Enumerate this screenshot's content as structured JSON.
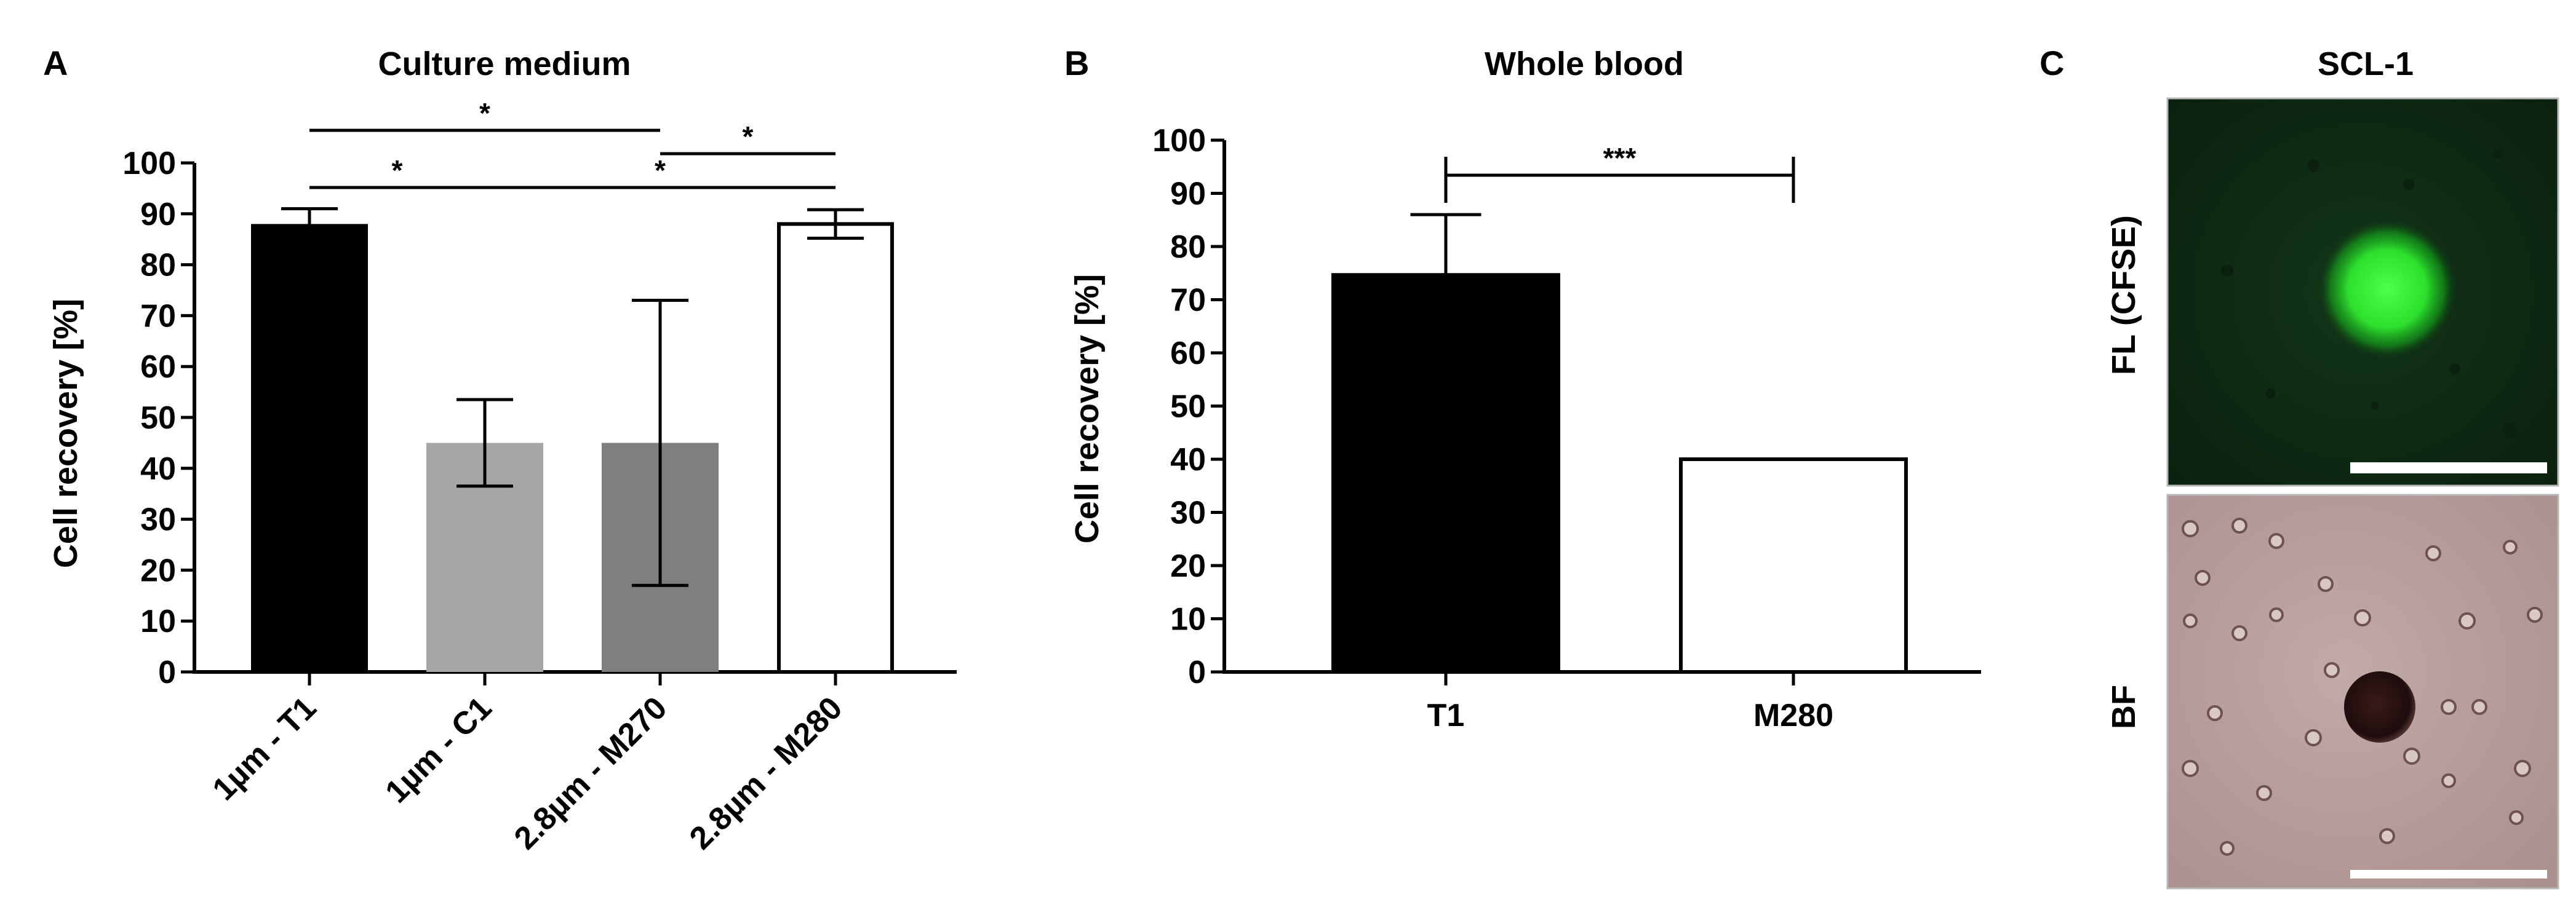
{
  "chart_data": [
    {
      "panel": "A",
      "type": "bar",
      "title": "Culture medium",
      "ylabel": "Cell recovery [%]",
      "xlabel": "",
      "ylim": [
        0,
        100
      ],
      "yticks": [
        0,
        10,
        20,
        30,
        40,
        50,
        60,
        70,
        80,
        90,
        100
      ],
      "categories": [
        "1µm - T1",
        "1µm - C1",
        "2.8µm - M270",
        "2.8µm - M280"
      ],
      "values": [
        88,
        45,
        45,
        88
      ],
      "errors": [
        3,
        8.5,
        28,
        2.8
      ],
      "bar_colors": [
        "#000000",
        "#a6a6a6",
        "#7f7f7f",
        "#ffffff"
      ],
      "significance": [
        {
          "from": 0,
          "to": 2,
          "label": "*"
        },
        {
          "from": 2,
          "to": 3,
          "label": "*"
        },
        {
          "from": 0,
          "to": 1,
          "label": "*"
        },
        {
          "from": 1,
          "to": 3,
          "label": "*"
        }
      ]
    },
    {
      "panel": "B",
      "type": "bar",
      "title": "Whole blood",
      "ylabel": "Cell recovery [%]",
      "xlabel": "",
      "ylim": [
        0,
        100
      ],
      "yticks": [
        0,
        10,
        20,
        30,
        40,
        50,
        60,
        70,
        80,
        90,
        100
      ],
      "categories": [
        "T1",
        "M280"
      ],
      "values": [
        75,
        40
      ],
      "errors": [
        11,
        0
      ],
      "bar_colors": [
        "#000000",
        "#ffffff"
      ],
      "significance": [
        {
          "from": 0,
          "to": 1,
          "label": "***"
        }
      ]
    }
  ],
  "panel_c": {
    "letter": "C",
    "title": "SCL-1",
    "rows": [
      {
        "label": "FL (CFSE)",
        "bg_color": "#0d2612",
        "feature_color": "#3df03d"
      },
      {
        "label": "BF",
        "bg_color": "#b79e9c",
        "feature_color": "#2a1414"
      }
    ]
  }
}
